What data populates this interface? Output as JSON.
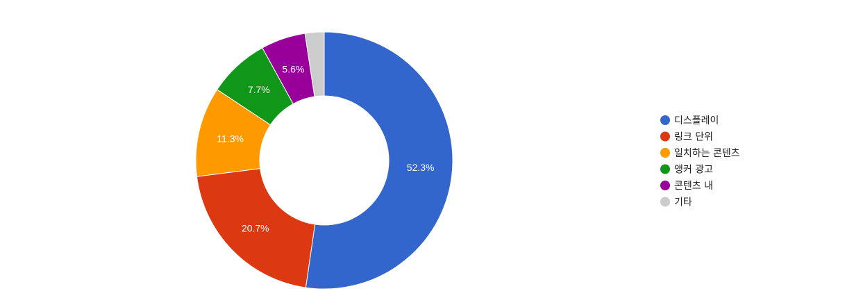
{
  "chart_data": {
    "type": "pie",
    "donut": true,
    "legend_position": "right",
    "slices": [
      {
        "label": "디스플레이",
        "value": 52.3,
        "display": "52.3%",
        "color": "#3366cc"
      },
      {
        "label": "링크 단위",
        "value": 20.7,
        "display": "20.7%",
        "color": "#dc3912"
      },
      {
        "label": "일치하는 콘텐츠",
        "value": 11.3,
        "display": "11.3%",
        "color": "#ff9900"
      },
      {
        "label": "앵커 광고",
        "value": 7.7,
        "display": "7.7%",
        "color": "#109618"
      },
      {
        "label": "콘텐츠 내",
        "value": 5.6,
        "display": "5.6%",
        "color": "#990099"
      },
      {
        "label": "기타",
        "value": 2.4,
        "display": "",
        "color": "#cccccc"
      }
    ]
  }
}
